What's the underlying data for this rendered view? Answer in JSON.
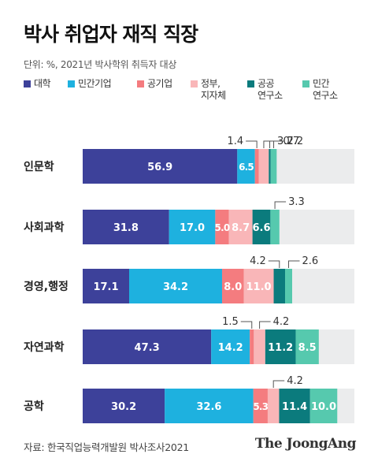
{
  "title": "박사 취업자 재직 직장",
  "subtitle": "단위: %, 2021년 박사학위 취득자 대상",
  "source": "자료: 한국직업능력개발원 박사조사2021",
  "brand": "The JoongAng",
  "colors": {
    "university": "#3d419a",
    "private": "#1eb1df",
    "public_corp": "#f47c7f",
    "government": "#f9b6b8",
    "public_research": "#0b7b7d",
    "private_research": "#56c9ae",
    "remainder": "#ebeced"
  },
  "chart_data": {
    "type": "bar",
    "orientation": "horizontal",
    "stacked": true,
    "xlim": [
      0,
      100
    ],
    "categories": [
      "인문학",
      "사회과학",
      "경영,행정",
      "자연과학",
      "공학"
    ],
    "series": [
      {
        "name": "대학",
        "color_key": "university",
        "values": [
          56.9,
          31.8,
          17.1,
          47.3,
          30.2
        ]
      },
      {
        "name": "민간기업",
        "color_key": "private",
        "values": [
          6.5,
          17.0,
          34.2,
          14.2,
          32.6
        ]
      },
      {
        "name": "공기업",
        "color_key": "public_corp",
        "values": [
          1.4,
          5.0,
          8.0,
          1.5,
          5.3
        ]
      },
      {
        "name": "정부,\n지자체",
        "color_key": "government",
        "values": [
          3.7,
          8.7,
          11.0,
          4.2,
          4.2
        ]
      },
      {
        "name": "공공\n연구소",
        "color_key": "public_research",
        "values": [
          0.7,
          6.6,
          4.2,
          11.2,
          11.4
        ]
      },
      {
        "name": "민간\n연구소",
        "color_key": "private_research",
        "values": [
          2.2,
          3.3,
          2.6,
          8.5,
          10.0
        ]
      }
    ]
  }
}
